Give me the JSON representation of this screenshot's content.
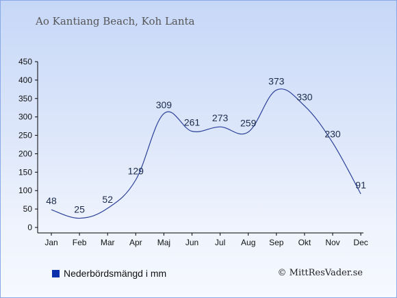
{
  "title": "Ao Kantiang Beach, Koh Lanta",
  "legend": {
    "label": "Nederbördsmängd i mm",
    "color": "#0b2faa"
  },
  "credit": "© MittResVader.se",
  "colors": {
    "line": "#2a3f9a",
    "axis": "#000000",
    "label": "#1a2a4a"
  },
  "chart_data": {
    "type": "line",
    "categories": [
      "Jan",
      "Feb",
      "Mar",
      "Apr",
      "Maj",
      "Jun",
      "Jul",
      "Aug",
      "Sep",
      "Okt",
      "Nov",
      "Dec"
    ],
    "series": [
      {
        "name": "Nederbördsmängd i mm",
        "values": [
          48,
          25,
          52,
          129,
          309,
          261,
          273,
          259,
          373,
          330,
          230,
          91
        ]
      }
    ],
    "yticks": [
      0,
      50,
      100,
      150,
      200,
      250,
      300,
      350,
      400,
      450
    ],
    "ylim": [
      0,
      450
    ],
    "grid": false,
    "legend_position": "bottom-left"
  }
}
